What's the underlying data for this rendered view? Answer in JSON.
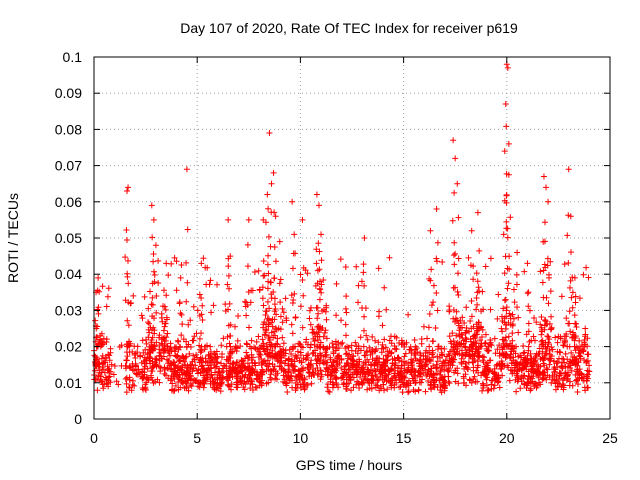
{
  "chart_data": {
    "type": "scatter",
    "title": "Day 107 of 2020, Rate Of TEC Index for receiver p619",
    "xlabel": "GPS time / hours",
    "ylabel": "ROTI / TECUs",
    "xlim": [
      0,
      25
    ],
    "ylim": [
      0,
      0.1
    ],
    "xticks": [
      "0",
      "5",
      "10",
      "15",
      "20",
      "25"
    ],
    "xtick_values": [
      0,
      5,
      10,
      15,
      20,
      25
    ],
    "yticks": [
      "0",
      "0.01",
      "0.02",
      "0.03",
      "0.04",
      "0.05",
      "0.06",
      "0.07",
      "0.08",
      "0.09",
      "0.1"
    ],
    "ytick_values": [
      0,
      0.01,
      0.02,
      0.03,
      0.04,
      0.05,
      0.06,
      0.07,
      0.08,
      0.09,
      0.1
    ],
    "grid": true,
    "marker": "plus",
    "color": "#ff0000",
    "series": [
      {
        "name": "ROTI",
        "description": "Dense scatter of ROTI values: baseline ~0.005-0.02 TECU/min throughout 0-24 h, frequent spikes to 0.03-0.05, notable peaks listed",
        "x": [
          0.1,
          0.2,
          0.3,
          1.6,
          1.65,
          2.8,
          2.9,
          3.0,
          3.5,
          4.2,
          4.5,
          5.2,
          6.5,
          6.6,
          7.5,
          8.2,
          8.4,
          8.5,
          8.6,
          8.7,
          8.8,
          9.0,
          9.6,
          9.7,
          10.1,
          10.8,
          10.9,
          11.0,
          12.2,
          13.1,
          16.3,
          16.6,
          17.4,
          17.5,
          17.6,
          18.3,
          18.6,
          19.9,
          19.95,
          20.0,
          20.05,
          20.1,
          20.5,
          21.0,
          21.8,
          21.9,
          22.0,
          23.0,
          23.1,
          23.3,
          23.8
        ],
        "y": [
          0.035,
          0.039,
          0.023,
          0.063,
          0.064,
          0.059,
          0.055,
          0.048,
          0.043,
          0.039,
          0.069,
          0.043,
          0.055,
          0.045,
          0.055,
          0.055,
          0.062,
          0.079,
          0.065,
          0.068,
          0.056,
          0.049,
          0.06,
          0.051,
          0.055,
          0.062,
          0.059,
          0.051,
          0.042,
          0.05,
          0.052,
          0.058,
          0.077,
          0.072,
          0.065,
          0.052,
          0.057,
          0.074,
          0.087,
          0.098,
          0.097,
          0.076,
          0.046,
          0.043,
          0.067,
          0.064,
          0.06,
          0.069,
          0.056,
          0.039,
          0.025
        ]
      }
    ]
  }
}
